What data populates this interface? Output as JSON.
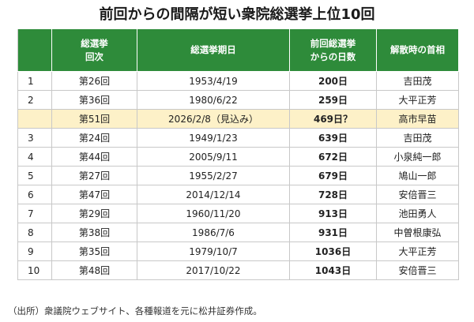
{
  "title": "前回からの間隔が短い衆院総選挙上位10回",
  "headers": {
    "rank": "",
    "election_line1": "総選挙",
    "election_line2": "回次",
    "date": "総選挙期日",
    "days_line1": "前回総選挙",
    "days_line2": "からの日数",
    "pm": "解散時の首相"
  },
  "rows": [
    {
      "rank": "1",
      "election": "第26回",
      "date": "1953/4/19",
      "days": "200日",
      "pm": "吉田茂"
    },
    {
      "rank": "2",
      "election": "第36回",
      "date": "1980/6/22",
      "days": "259日",
      "pm": "大平正芳"
    },
    {
      "rank": "",
      "election": "第51回",
      "date": "2026/2/8（見込み）",
      "days": "469日？",
      "pm": "高市早苗"
    },
    {
      "rank": "3",
      "election": "第24回",
      "date": "1949/1/23",
      "days": "639日",
      "pm": "吉田茂"
    },
    {
      "rank": "4",
      "election": "第44回",
      "date": "2005/9/11",
      "days": "672日",
      "pm": "小泉純一郎"
    },
    {
      "rank": "5",
      "election": "第27回",
      "date": "1955/2/27",
      "days": "679日",
      "pm": "鳩山一郎"
    },
    {
      "rank": "6",
      "election": "第47回",
      "date": "2014/12/14",
      "days": "728日",
      "pm": "安倍晋三"
    },
    {
      "rank": "7",
      "election": "第29回",
      "date": "1960/11/20",
      "days": "913日",
      "pm": "池田勇人"
    },
    {
      "rank": "8",
      "election": "第38回",
      "date": "1986/7/6",
      "days": "931日",
      "pm": "中曽根康弘"
    },
    {
      "rank": "9",
      "election": "第35回",
      "date": "1979/10/7",
      "days": "1036日",
      "pm": "大平正芳"
    },
    {
      "rank": "10",
      "election": "第48回",
      "date": "2017/10/22",
      "days": "1043日",
      "pm": "安倍晋三"
    }
  ],
  "source": "（出所）衆議院ウェブサイト、各種報道を元に松井証券作成。",
  "colors": {
    "header_bg": "#2e8b3a",
    "highlight_bg": "#fdf1c8"
  }
}
